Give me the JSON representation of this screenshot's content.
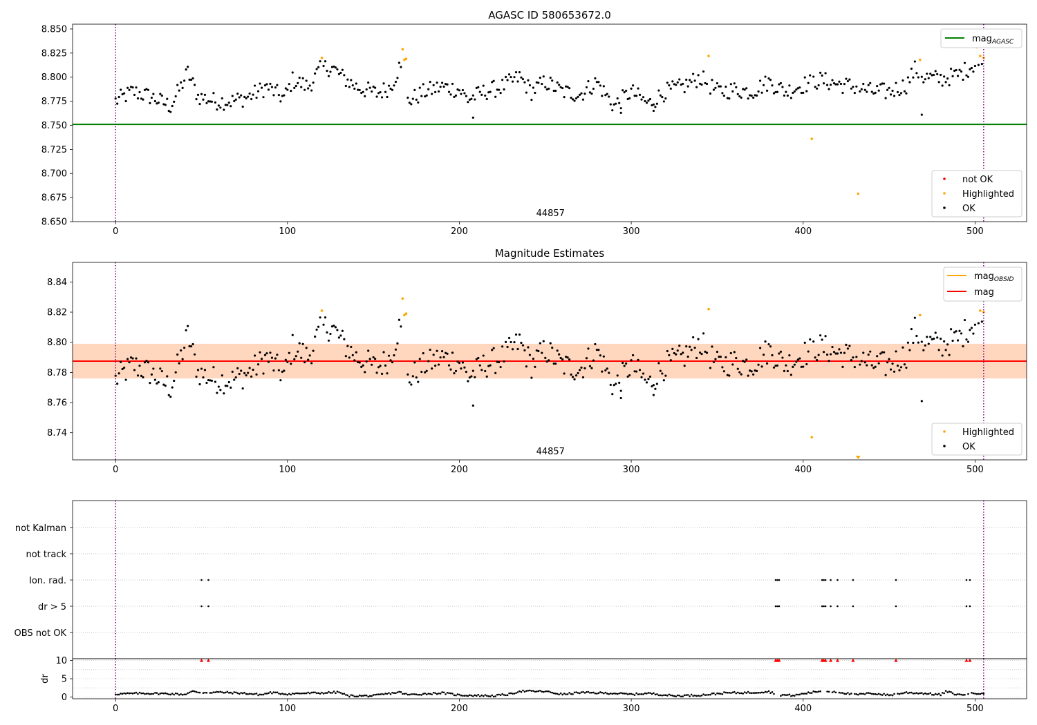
{
  "chart_data": [
    {
      "type": "scatter",
      "title": "AGASC ID 580653672.0",
      "xlim": [
        -25,
        530
      ],
      "ylim": [
        8.65,
        8.855
      ],
      "xticks": [
        0,
        100,
        200,
        300,
        400,
        500
      ],
      "yticks": [
        8.65,
        8.675,
        8.7,
        8.725,
        8.75,
        8.775,
        8.8,
        8.825,
        8.85
      ],
      "ytick_labels": [
        "8.650",
        "8.675",
        "8.700",
        "8.725",
        "8.750",
        "8.775",
        "8.800",
        "8.825",
        "8.850"
      ],
      "obsid_label": "44857",
      "obs_boundaries": [
        0,
        505
      ],
      "reference_line": {
        "name": "mag",
        "subscript": "AGASC",
        "y": 8.751,
        "x_range": [
          -25,
          530
        ],
        "color": "#008000"
      },
      "legend_lines": [
        {
          "name": "mag",
          "subscript": "AGASC",
          "color": "#008000"
        }
      ],
      "legend_points": [
        {
          "name": "not OK",
          "color": "#ff0000"
        },
        {
          "name": "Highlighted",
          "color": "#ffa500"
        },
        {
          "name": "OK",
          "color": "#000000"
        }
      ],
      "highlighted_points": [
        [
          120,
          8.82
        ],
        [
          167,
          8.829
        ],
        [
          168,
          8.818
        ],
        [
          169,
          8.819
        ],
        [
          345,
          8.822
        ],
        [
          405,
          8.736
        ],
        [
          432,
          8.679
        ],
        [
          468,
          8.818
        ],
        [
          501,
          8.831
        ],
        [
          503,
          8.822
        ],
        [
          505,
          8.82
        ]
      ],
      "ok_series_anchors": [
        [
          0,
          8.775
        ],
        [
          10,
          8.785
        ],
        [
          20,
          8.78
        ],
        [
          32,
          8.77
        ],
        [
          38,
          8.79
        ],
        [
          42,
          8.805
        ],
        [
          48,
          8.78
        ],
        [
          58,
          8.775
        ],
        [
          68,
          8.775
        ],
        [
          78,
          8.78
        ],
        [
          88,
          8.79
        ],
        [
          98,
          8.778
        ],
        [
          103,
          8.797
        ],
        [
          112,
          8.79
        ],
        [
          120,
          8.81
        ],
        [
          126,
          8.81
        ],
        [
          132,
          8.8
        ],
        [
          140,
          8.79
        ],
        [
          152,
          8.783
        ],
        [
          160,
          8.79
        ],
        [
          165,
          8.81
        ],
        [
          168,
          8.8
        ],
        [
          170,
          8.775
        ],
        [
          180,
          8.785
        ],
        [
          190,
          8.79
        ],
        [
          200,
          8.787
        ],
        [
          205,
          8.777
        ],
        [
          215,
          8.785
        ],
        [
          225,
          8.79
        ],
        [
          235,
          8.8
        ],
        [
          242,
          8.785
        ],
        [
          250,
          8.795
        ],
        [
          260,
          8.785
        ],
        [
          270,
          8.782
        ],
        [
          280,
          8.795
        ],
        [
          290,
          8.77
        ],
        [
          300,
          8.785
        ],
        [
          310,
          8.772
        ],
        [
          320,
          8.785
        ],
        [
          330,
          8.79
        ],
        [
          340,
          8.8
        ],
        [
          350,
          8.785
        ],
        [
          360,
          8.787
        ],
        [
          370,
          8.785
        ],
        [
          380,
          8.795
        ],
        [
          390,
          8.785
        ],
        [
          400,
          8.792
        ],
        [
          410,
          8.797
        ],
        [
          420,
          8.793
        ],
        [
          430,
          8.79
        ],
        [
          440,
          8.785
        ],
        [
          450,
          8.785
        ],
        [
          460,
          8.792
        ],
        [
          465,
          8.808
        ],
        [
          470,
          8.8
        ],
        [
          480,
          8.798
        ],
        [
          490,
          8.802
        ],
        [
          500,
          8.814
        ],
        [
          505,
          8.812
        ]
      ],
      "ok_outliers": [
        [
          208,
          8.758
        ],
        [
          469,
          8.761
        ],
        [
          294,
          8.763
        ],
        [
          313,
          8.765
        ]
      ]
    },
    {
      "type": "scatter",
      "title": "Magnitude Estimates",
      "xlim": [
        -25,
        530
      ],
      "ylim": [
        8.722,
        8.853
      ],
      "xticks": [
        0,
        100,
        200,
        300,
        400,
        500
      ],
      "yticks": [
        8.74,
        8.76,
        8.78,
        8.8,
        8.82,
        8.84
      ],
      "ytick_labels": [
        "8.74",
        "8.76",
        "8.78",
        "8.80",
        "8.82",
        "8.84"
      ],
      "obsid_label": "44857",
      "obs_boundaries": [
        0,
        505
      ],
      "mag_line": {
        "name": "mag",
        "y": 8.7875,
        "x_range": [
          -25,
          530
        ],
        "color": "#ff0000",
        "band": [
          8.776,
          8.799
        ]
      },
      "mag_obsid_line": {
        "name": "mag",
        "subscript": "OBSID",
        "y": 8.7875,
        "x_range": [
          -25,
          530
        ],
        "color": "#ffa500",
        "band": [
          8.776,
          8.799
        ]
      },
      "legend_lines": [
        {
          "name": "mag",
          "subscript": "OBSID",
          "color": "#ffa500"
        },
        {
          "name": "mag",
          "subscript": "",
          "color": "#ff0000"
        }
      ],
      "legend_points": [
        {
          "name": "Highlighted",
          "color": "#ffa500"
        },
        {
          "name": "OK",
          "color": "#000000"
        }
      ],
      "highlighted_points": [
        [
          120,
          8.821
        ],
        [
          167,
          8.829
        ],
        [
          168,
          8.818
        ],
        [
          169,
          8.819
        ],
        [
          345,
          8.822
        ],
        [
          405,
          8.737
        ],
        [
          432,
          8.723
        ],
        [
          468,
          8.818
        ],
        [
          501,
          8.831
        ],
        [
          503,
          8.821
        ],
        [
          505,
          8.82
        ]
      ],
      "ok_outliers": [
        [
          208,
          8.758
        ],
        [
          469,
          8.761
        ],
        [
          294,
          8.763
        ],
        [
          313,
          8.765
        ]
      ]
    },
    {
      "type": "scatter",
      "title": "",
      "xlim": [
        -25,
        530
      ],
      "xticks": [
        0,
        100,
        200,
        300,
        400,
        500
      ],
      "flag_labels": [
        "not Kalman",
        "not track",
        "Ion. rad.",
        "dr > 5",
        "OBS not OK"
      ],
      "flag_points": {
        "Ion. rad.": [
          50,
          54,
          384,
          385,
          386,
          411,
          412,
          413,
          416,
          420,
          429,
          454,
          495,
          497
        ],
        "dr > 5": [
          50,
          54,
          384,
          385,
          386,
          411,
          412,
          413,
          416,
          420,
          429,
          454,
          495,
          497
        ]
      },
      "dr_axis": {
        "ylabel": "dr",
        "ylim": [
          -0.5,
          10.5
        ],
        "yticks": [
          0,
          5,
          10
        ],
        "ytick_labels": [
          "0",
          "5",
          "10"
        ]
      },
      "dr_clipped_points": [
        50,
        54,
        384,
        385,
        386,
        411,
        412,
        413,
        416,
        420,
        429,
        454,
        495,
        497
      ],
      "dr_series_anchors": [
        [
          0,
          0.8
        ],
        [
          15,
          1.0
        ],
        [
          30,
          0.9
        ],
        [
          40,
          0.7
        ],
        [
          45,
          1.5
        ],
        [
          50,
          1.2
        ],
        [
          60,
          1.3
        ],
        [
          75,
          1.0
        ],
        [
          85,
          0.6
        ],
        [
          90,
          1.2
        ],
        [
          100,
          0.8
        ],
        [
          108,
          1.0
        ],
        [
          120,
          1.1
        ],
        [
          130,
          1.3
        ],
        [
          135,
          0.3
        ],
        [
          150,
          0.3
        ],
        [
          160,
          1.0
        ],
        [
          165,
          1.3
        ],
        [
          170,
          0.6
        ],
        [
          190,
          1.1
        ],
        [
          200,
          0.5
        ],
        [
          220,
          0.3
        ],
        [
          230,
          0.8
        ],
        [
          235,
          1.6
        ],
        [
          250,
          1.5
        ],
        [
          260,
          0.7
        ],
        [
          270,
          1.2
        ],
        [
          290,
          1.0
        ],
        [
          300,
          0.7
        ],
        [
          310,
          1.0
        ],
        [
          325,
          0.3
        ],
        [
          340,
          0.5
        ],
        [
          355,
          1.1
        ],
        [
          370,
          1.2
        ],
        [
          380,
          1.5
        ],
        [
          385,
          0.6
        ],
        [
          395,
          0.4
        ],
        [
          400,
          0.9
        ],
        [
          410,
          1.6
        ],
        [
          420,
          1.4
        ],
        [
          430,
          0.6
        ],
        [
          440,
          1.0
        ],
        [
          450,
          0.5
        ],
        [
          460,
          1.2
        ],
        [
          470,
          1.0
        ],
        [
          480,
          0.6
        ],
        [
          483,
          1.5
        ],
        [
          490,
          0.6
        ],
        [
          500,
          1.0
        ],
        [
          505,
          1.1
        ]
      ]
    }
  ]
}
